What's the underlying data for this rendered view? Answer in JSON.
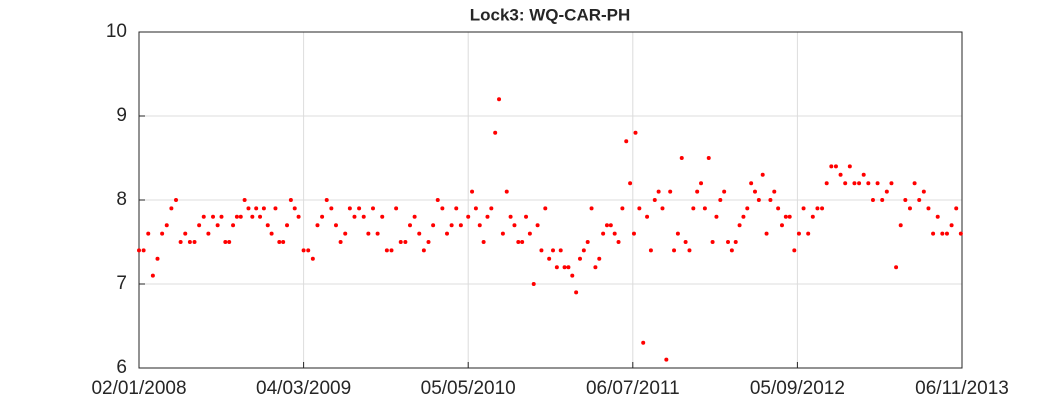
{
  "chart_data": {
    "type": "scatter",
    "title": "Lock3: WQ-CAR-PH",
    "color": "#ff0000",
    "grid": true,
    "xlim": [
      "2008-01-02",
      "2013-11-06"
    ],
    "xticks": [
      {
        "value": "2008-01-02",
        "label": "02/01/2008"
      },
      {
        "value": "2009-03-04",
        "label": "04/03/2009"
      },
      {
        "value": "2010-05-05",
        "label": "05/05/2010"
      },
      {
        "value": "2011-07-06",
        "label": "06/07/2011"
      },
      {
        "value": "2012-09-05",
        "label": "05/09/2012"
      },
      {
        "value": "2013-11-06",
        "label": "06/11/2013"
      }
    ],
    "ylim": [
      6,
      10
    ],
    "yticks": [
      6,
      7,
      8,
      9,
      10
    ],
    "x": [
      "2008-01-02",
      "2008-01-14",
      "2008-01-26",
      "2008-02-07",
      "2008-02-19",
      "2008-03-02",
      "2008-03-14",
      "2008-03-26",
      "2008-04-07",
      "2008-04-19",
      "2008-05-01",
      "2008-05-13",
      "2008-05-25",
      "2008-06-06",
      "2008-06-18",
      "2008-06-30",
      "2008-07-12",
      "2008-07-24",
      "2008-08-03",
      "2008-08-13",
      "2008-08-23",
      "2008-09-02",
      "2008-09-12",
      "2008-09-22",
      "2008-10-02",
      "2008-10-12",
      "2008-10-22",
      "2008-11-01",
      "2008-11-11",
      "2008-11-21",
      "2008-12-01",
      "2008-12-11",
      "2008-12-21",
      "2008-12-31",
      "2009-01-10",
      "2009-01-20",
      "2009-01-30",
      "2009-02-09",
      "2009-02-19",
      "2009-03-04",
      "2009-03-16",
      "2009-03-28",
      "2009-04-09",
      "2009-04-21",
      "2009-05-03",
      "2009-05-15",
      "2009-05-27",
      "2009-06-08",
      "2009-06-20",
      "2009-07-02",
      "2009-07-14",
      "2009-07-26",
      "2009-08-07",
      "2009-08-19",
      "2009-08-31",
      "2009-09-12",
      "2009-09-24",
      "2009-10-06",
      "2009-10-18",
      "2009-10-30",
      "2009-11-11",
      "2009-11-23",
      "2009-12-05",
      "2009-12-17",
      "2009-12-29",
      "2010-01-10",
      "2010-01-22",
      "2010-02-03",
      "2010-02-15",
      "2010-02-27",
      "2010-03-11",
      "2010-03-23",
      "2010-04-04",
      "2010-04-16",
      "2010-05-05",
      "2010-05-15",
      "2010-05-25",
      "2010-06-04",
      "2010-06-14",
      "2010-06-24",
      "2010-07-04",
      "2010-07-14",
      "2010-07-24",
      "2010-08-03",
      "2010-08-13",
      "2010-08-23",
      "2010-09-02",
      "2010-09-12",
      "2010-09-22",
      "2010-10-02",
      "2010-10-12",
      "2010-10-22",
      "2010-11-01",
      "2010-11-11",
      "2010-11-21",
      "2010-12-01",
      "2010-12-11",
      "2010-12-21",
      "2010-12-31",
      "2011-01-10",
      "2011-01-20",
      "2011-01-30",
      "2011-02-09",
      "2011-02-19",
      "2011-03-01",
      "2011-03-11",
      "2011-03-21",
      "2011-03-31",
      "2011-04-10",
      "2011-04-20",
      "2011-04-30",
      "2011-05-10",
      "2011-05-20",
      "2011-05-30",
      "2011-06-09",
      "2011-06-19",
      "2011-06-29",
      "2011-07-09",
      "2011-07-13",
      "2011-07-23",
      "2011-08-02",
      "2011-08-12",
      "2011-08-22",
      "2011-09-01",
      "2011-09-11",
      "2011-09-21",
      "2011-10-01",
      "2011-10-11",
      "2011-10-21",
      "2011-10-31",
      "2011-11-10",
      "2011-11-20",
      "2011-11-30",
      "2011-12-10",
      "2011-12-20",
      "2011-12-30",
      "2012-01-09",
      "2012-01-19",
      "2012-01-29",
      "2012-02-08",
      "2012-02-18",
      "2012-02-28",
      "2012-03-09",
      "2012-03-19",
      "2012-03-29",
      "2012-04-08",
      "2012-04-18",
      "2012-04-28",
      "2012-05-08",
      "2012-05-18",
      "2012-05-28",
      "2012-06-07",
      "2012-06-17",
      "2012-06-27",
      "2012-07-07",
      "2012-07-17",
      "2012-07-27",
      "2012-08-06",
      "2012-08-16",
      "2012-08-28",
      "2012-09-09",
      "2012-09-21",
      "2012-10-03",
      "2012-10-15",
      "2012-10-27",
      "2012-11-08",
      "2012-11-20",
      "2012-12-02",
      "2012-12-14",
      "2012-12-26",
      "2013-01-07",
      "2013-01-19",
      "2013-01-31",
      "2013-02-12",
      "2013-02-24",
      "2013-03-08",
      "2013-03-20",
      "2013-04-01",
      "2013-04-13",
      "2013-04-25",
      "2013-05-07",
      "2013-05-19",
      "2013-05-31",
      "2013-06-12",
      "2013-06-24",
      "2013-07-06",
      "2013-07-18",
      "2013-07-30",
      "2013-08-11",
      "2013-08-23",
      "2013-09-04",
      "2013-09-16",
      "2013-09-28",
      "2013-10-10",
      "2013-10-22",
      "2013-11-03"
    ],
    "values": [
      7.4,
      7.4,
      7.6,
      7.1,
      7.3,
      7.6,
      7.7,
      7.9,
      8.0,
      7.5,
      7.6,
      7.5,
      7.5,
      7.7,
      7.8,
      7.6,
      7.8,
      7.7,
      7.8,
      7.5,
      7.5,
      7.7,
      7.8,
      7.8,
      8.0,
      7.9,
      7.8,
      7.9,
      7.8,
      7.9,
      7.7,
      7.6,
      7.9,
      7.5,
      7.5,
      7.7,
      8.0,
      7.9,
      7.8,
      7.4,
      7.4,
      7.3,
      7.7,
      7.8,
      8.0,
      7.9,
      7.7,
      7.5,
      7.6,
      7.9,
      7.8,
      7.9,
      7.8,
      7.6,
      7.9,
      7.6,
      7.8,
      7.4,
      7.4,
      7.9,
      7.5,
      7.5,
      7.7,
      7.8,
      7.6,
      7.4,
      7.5,
      7.7,
      8.0,
      7.9,
      7.6,
      7.7,
      7.9,
      7.7,
      7.8,
      8.1,
      7.9,
      7.7,
      7.5,
      7.8,
      7.9,
      8.8,
      9.2,
      7.6,
      8.1,
      7.8,
      7.7,
      7.5,
      7.5,
      7.8,
      7.6,
      7.0,
      7.7,
      7.4,
      7.9,
      7.3,
      7.4,
      7.2,
      7.4,
      7.2,
      7.2,
      7.1,
      6.9,
      7.3,
      7.4,
      7.5,
      7.9,
      7.2,
      7.3,
      7.6,
      7.7,
      7.7,
      7.6,
      7.5,
      7.9,
      8.7,
      8.2,
      7.6,
      8.8,
      7.9,
      6.3,
      7.8,
      7.4,
      8.0,
      8.1,
      7.9,
      6.1,
      8.1,
      7.4,
      7.6,
      8.5,
      7.5,
      7.4,
      7.9,
      8.1,
      8.2,
      7.9,
      8.5,
      7.5,
      7.8,
      8.0,
      8.1,
      7.5,
      7.4,
      7.5,
      7.7,
      7.8,
      7.9,
      8.2,
      8.1,
      8.0,
      8.3,
      7.6,
      8.0,
      8.1,
      7.9,
      7.7,
      7.8,
      7.8,
      7.4,
      7.6,
      7.9,
      7.6,
      7.8,
      7.9,
      7.9,
      8.2,
      8.4,
      8.4,
      8.3,
      8.2,
      8.4,
      8.2,
      8.2,
      8.3,
      8.2,
      8.0,
      8.2,
      8.0,
      8.1,
      8.2,
      7.2,
      7.7,
      8.0,
      7.9,
      8.2,
      8.0,
      8.1,
      7.9,
      7.6,
      7.8,
      7.6,
      7.6,
      7.7,
      7.9,
      7.6
    ]
  }
}
